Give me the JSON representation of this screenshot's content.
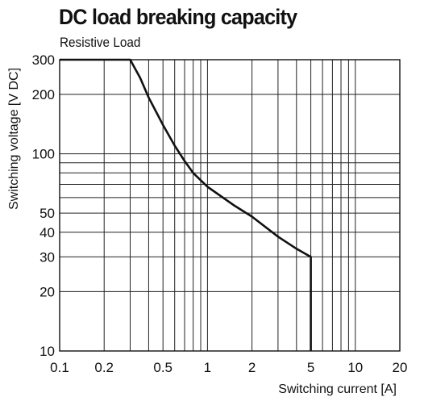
{
  "chart_data": {
    "type": "line",
    "title": "DC load breaking capacity",
    "subtitle": "Resistive Load",
    "xlabel": "Switching current [A]",
    "ylabel": "Switching voltage [V DC]",
    "x_scale": "log",
    "y_scale": "log",
    "xlim": [
      0.1,
      20
    ],
    "ylim": [
      10,
      300
    ],
    "grid": true,
    "x_ticks": [
      {
        "value": 0.1,
        "label": "0.1"
      },
      {
        "value": 0.2,
        "label": "0.2"
      },
      {
        "value": 0.5,
        "label": "0.5"
      },
      {
        "value": 1,
        "label": "1"
      },
      {
        "value": 2,
        "label": "2"
      },
      {
        "value": 5,
        "label": "5"
      },
      {
        "value": 10,
        "label": "10"
      },
      {
        "value": 20,
        "label": "20"
      }
    ],
    "y_ticks": [
      {
        "value": 10,
        "label": "10"
      },
      {
        "value": 20,
        "label": "20"
      },
      {
        "value": 30,
        "label": "30"
      },
      {
        "value": 40,
        "label": "40"
      },
      {
        "value": 50,
        "label": "50"
      },
      {
        "value": 100,
        "label": "100"
      },
      {
        "value": 200,
        "label": "200"
      },
      {
        "value": 300,
        "label": "300"
      }
    ],
    "x_grid": [
      0.1,
      0.2,
      0.3,
      0.4,
      0.5,
      0.6,
      0.7,
      0.8,
      0.9,
      1,
      2,
      3,
      4,
      5,
      6,
      7,
      8,
      9,
      10,
      20
    ],
    "y_grid": [
      10,
      20,
      30,
      40,
      50,
      60,
      70,
      80,
      90,
      100,
      200,
      300
    ],
    "series": [
      {
        "x": [
          0.1,
          0.3,
          0.35,
          0.4,
          0.5,
          0.6,
          0.7,
          0.8,
          1,
          1.5,
          2,
          3,
          4,
          5,
          5,
          5
        ],
        "y": [
          300,
          300,
          243,
          193,
          140,
          110,
          92,
          80,
          68,
          55,
          48,
          38,
          33,
          30,
          20,
          10
        ]
      }
    ]
  }
}
